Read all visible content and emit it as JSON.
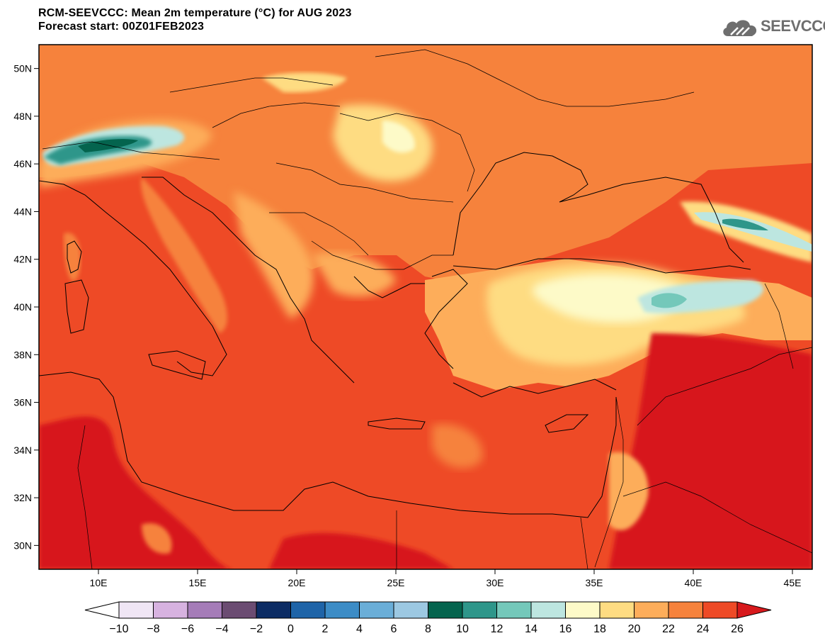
{
  "title": {
    "line1": "RCM-SEEVCCC: Mean 2m temperature (°C) for AUG 2023",
    "line2": "Forecast start: 00Z01FEB2023"
  },
  "logo": {
    "text": "SEEVCCC",
    "icon": "cloud-logo-icon"
  },
  "map": {
    "projection": "lat-lon",
    "lon_range": [
      7,
      46
    ],
    "lat_range": [
      29,
      51
    ],
    "lat_ticks": [
      "50N",
      "48N",
      "46N",
      "44N",
      "42N",
      "40N",
      "38N",
      "36N",
      "34N",
      "32N",
      "30N"
    ],
    "lon_ticks": [
      "10E",
      "15E",
      "20E",
      "25E",
      "30E",
      "35E",
      "40E",
      "45E"
    ],
    "variable": "Mean 2m temperature",
    "units": "°C"
  },
  "colorbar": {
    "levels": [
      "-10",
      "-8",
      "-6",
      "-4",
      "-2",
      "0",
      "2",
      "4",
      "6",
      "8",
      "10",
      "12",
      "14",
      "16",
      "18",
      "20",
      "22",
      "24",
      "26"
    ],
    "low_extend_color": "#ffffff",
    "high_extend_color": "#d7191c",
    "colors": [
      "#f0e6f5",
      "#d7b2e0",
      "#a57cb8",
      "#6b4c72",
      "#0c2c64",
      "#1e64a8",
      "#3c8cc6",
      "#6aaed8",
      "#9cc8e2",
      "#04644e",
      "#2e968a",
      "#74c8ba",
      "#bde6e0",
      "#fdfac8",
      "#fedc82",
      "#fdad5a",
      "#f6823c",
      "#ee4a26"
    ]
  }
}
